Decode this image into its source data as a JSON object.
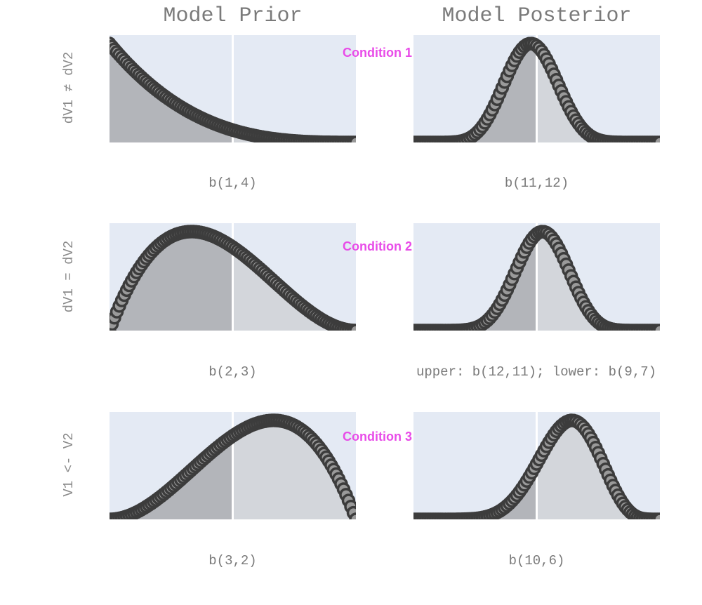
{
  "column_titles": [
    "Model Prior",
    "Model Posterior"
  ],
  "row_labels": [
    "dV1 ≠ dV2",
    "dV1 = dV2",
    "V1 <- V2"
  ],
  "conditions": [
    "Condition 1",
    "Condition 2",
    "Condition 3"
  ],
  "colors": {
    "panel_bg": "#e4eaf4",
    "fill_left": "#b3b5ba",
    "fill_right": "#d3d6db",
    "curve": "#3c3c3c",
    "condition_text": "#e84ce8",
    "text": "#7a7a7a"
  },
  "chart_data": [
    {
      "type": "area",
      "distribution": "beta",
      "alpha": 1,
      "beta": 4,
      "x_range": [
        0,
        1
      ],
      "split_at": 0.5,
      "caption": "b(1,4)"
    },
    {
      "type": "area",
      "distribution": "beta",
      "alpha": 11,
      "beta": 12,
      "x_range": [
        0,
        1
      ],
      "split_at": 0.5,
      "caption": "b(11,12)"
    },
    {
      "type": "area",
      "distribution": "beta",
      "alpha": 2,
      "beta": 3,
      "x_range": [
        0,
        1
      ],
      "split_at": 0.5,
      "caption": "b(2,3)"
    },
    {
      "type": "area",
      "distribution": "beta",
      "alpha": 12,
      "beta": 11,
      "x_range": [
        0,
        1
      ],
      "split_at": 0.5,
      "caption": "upper: b(12,11); lower: b(9,7)"
    },
    {
      "type": "area",
      "distribution": "beta",
      "alpha": 3,
      "beta": 2,
      "x_range": [
        0,
        1
      ],
      "split_at": 0.5,
      "caption": "b(3,2)"
    },
    {
      "type": "area",
      "distribution": "beta",
      "alpha": 10,
      "beta": 6,
      "x_range": [
        0,
        1
      ],
      "split_at": 0.5,
      "caption": "b(10,6)"
    }
  ]
}
